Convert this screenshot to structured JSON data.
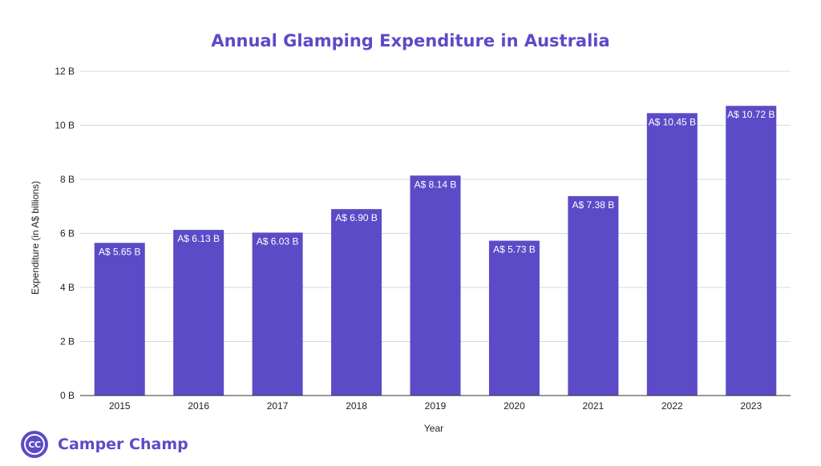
{
  "chart_data": {
    "type": "bar",
    "title": "Annual Glamping Expenditure in Australia",
    "xlabel": "Year",
    "ylabel": "Expenditure (in A$ billions)",
    "categories": [
      "2015",
      "2016",
      "2017",
      "2018",
      "2019",
      "2020",
      "2021",
      "2022",
      "2023"
    ],
    "values": [
      5.65,
      6.13,
      6.03,
      6.9,
      8.14,
      5.73,
      7.38,
      10.45,
      10.72
    ],
    "data_labels": [
      "A$ 5.65 B",
      "A$ 6.13 B",
      "A$ 6.03 B",
      "A$ 6.90 B",
      "A$ 8.14 B",
      "A$ 5.73 B",
      "A$ 7.38 B",
      "A$ 10.45 B",
      "A$ 10.72 B"
    ],
    "ylim": [
      0,
      12
    ],
    "yticks": [
      0,
      2,
      4,
      6,
      8,
      10,
      12
    ],
    "ytick_labels": [
      "0 B",
      "2 B",
      "4 B",
      "6 B",
      "8 B",
      "10 B",
      "12 B"
    ],
    "grid": true,
    "legend": "none",
    "bar_color": "#5b4bc7"
  },
  "brand": {
    "initials": "CC",
    "name": "Camper Champ",
    "color": "#5b4bc7"
  }
}
